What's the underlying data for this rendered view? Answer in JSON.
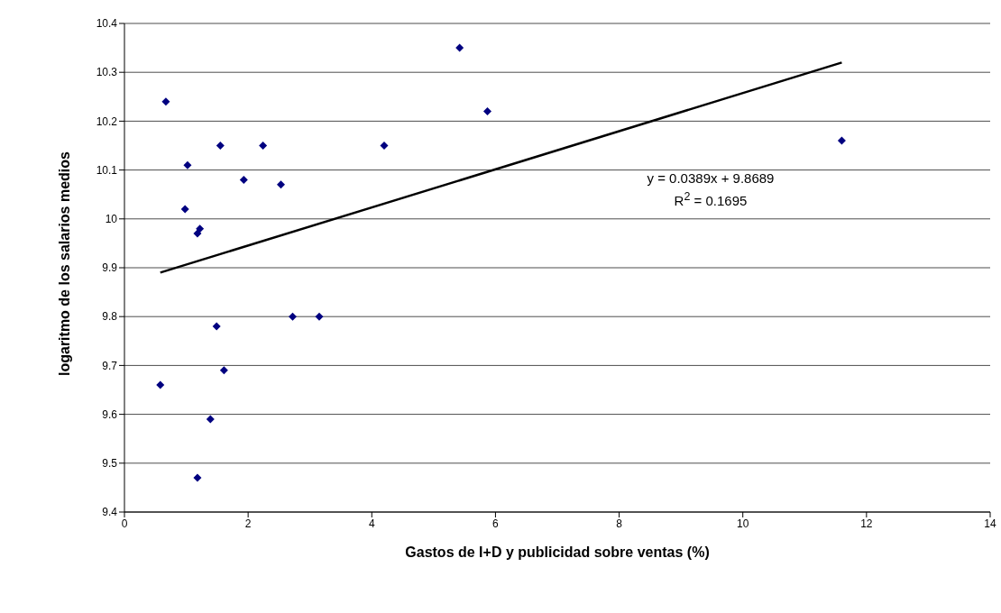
{
  "chart_data": {
    "type": "scatter",
    "xlabel": "Gastos de I+D y publicidad sobre ventas (%)",
    "ylabel": "logaritmo de los salarios medios",
    "xlim": [
      0,
      14
    ],
    "xticks": [
      0,
      2,
      4,
      6,
      8,
      10,
      12,
      14
    ],
    "ylim": [
      9.4,
      10.4
    ],
    "yticks": [
      9.4,
      9.5,
      9.6,
      9.7,
      9.8,
      9.9,
      10,
      10.1,
      10.2,
      10.3,
      10.4
    ],
    "grid": "y",
    "legend": false,
    "series": [
      {
        "marker": "diamond",
        "color": "#000080",
        "x": [
          0.67,
          1.02,
          0.98,
          1.18,
          1.22,
          1.55,
          2.24,
          1.93,
          2.53,
          1.49,
          0.58,
          2.72,
          3.15,
          1.61,
          1.39,
          1.18,
          5.42,
          5.87,
          4.2,
          11.6
        ],
        "values": [
          10.24,
          10.11,
          10.02,
          9.97,
          9.98,
          10.15,
          10.15,
          10.08,
          10.07,
          9.78,
          9.66,
          9.8,
          9.8,
          9.69,
          9.59,
          9.47,
          10.35,
          10.22,
          10.15,
          10.16
        ]
      },
      {
        "type": "line",
        "marker": "none",
        "line_style": "solid",
        "color": "#000000",
        "x": [
          0.58,
          11.6
        ],
        "values": [
          9.89,
          10.32
        ]
      }
    ],
    "annotations": [
      "y = 0.0389x + 9.8689",
      "R$^{2}$ = 0.1695"
    ]
  }
}
